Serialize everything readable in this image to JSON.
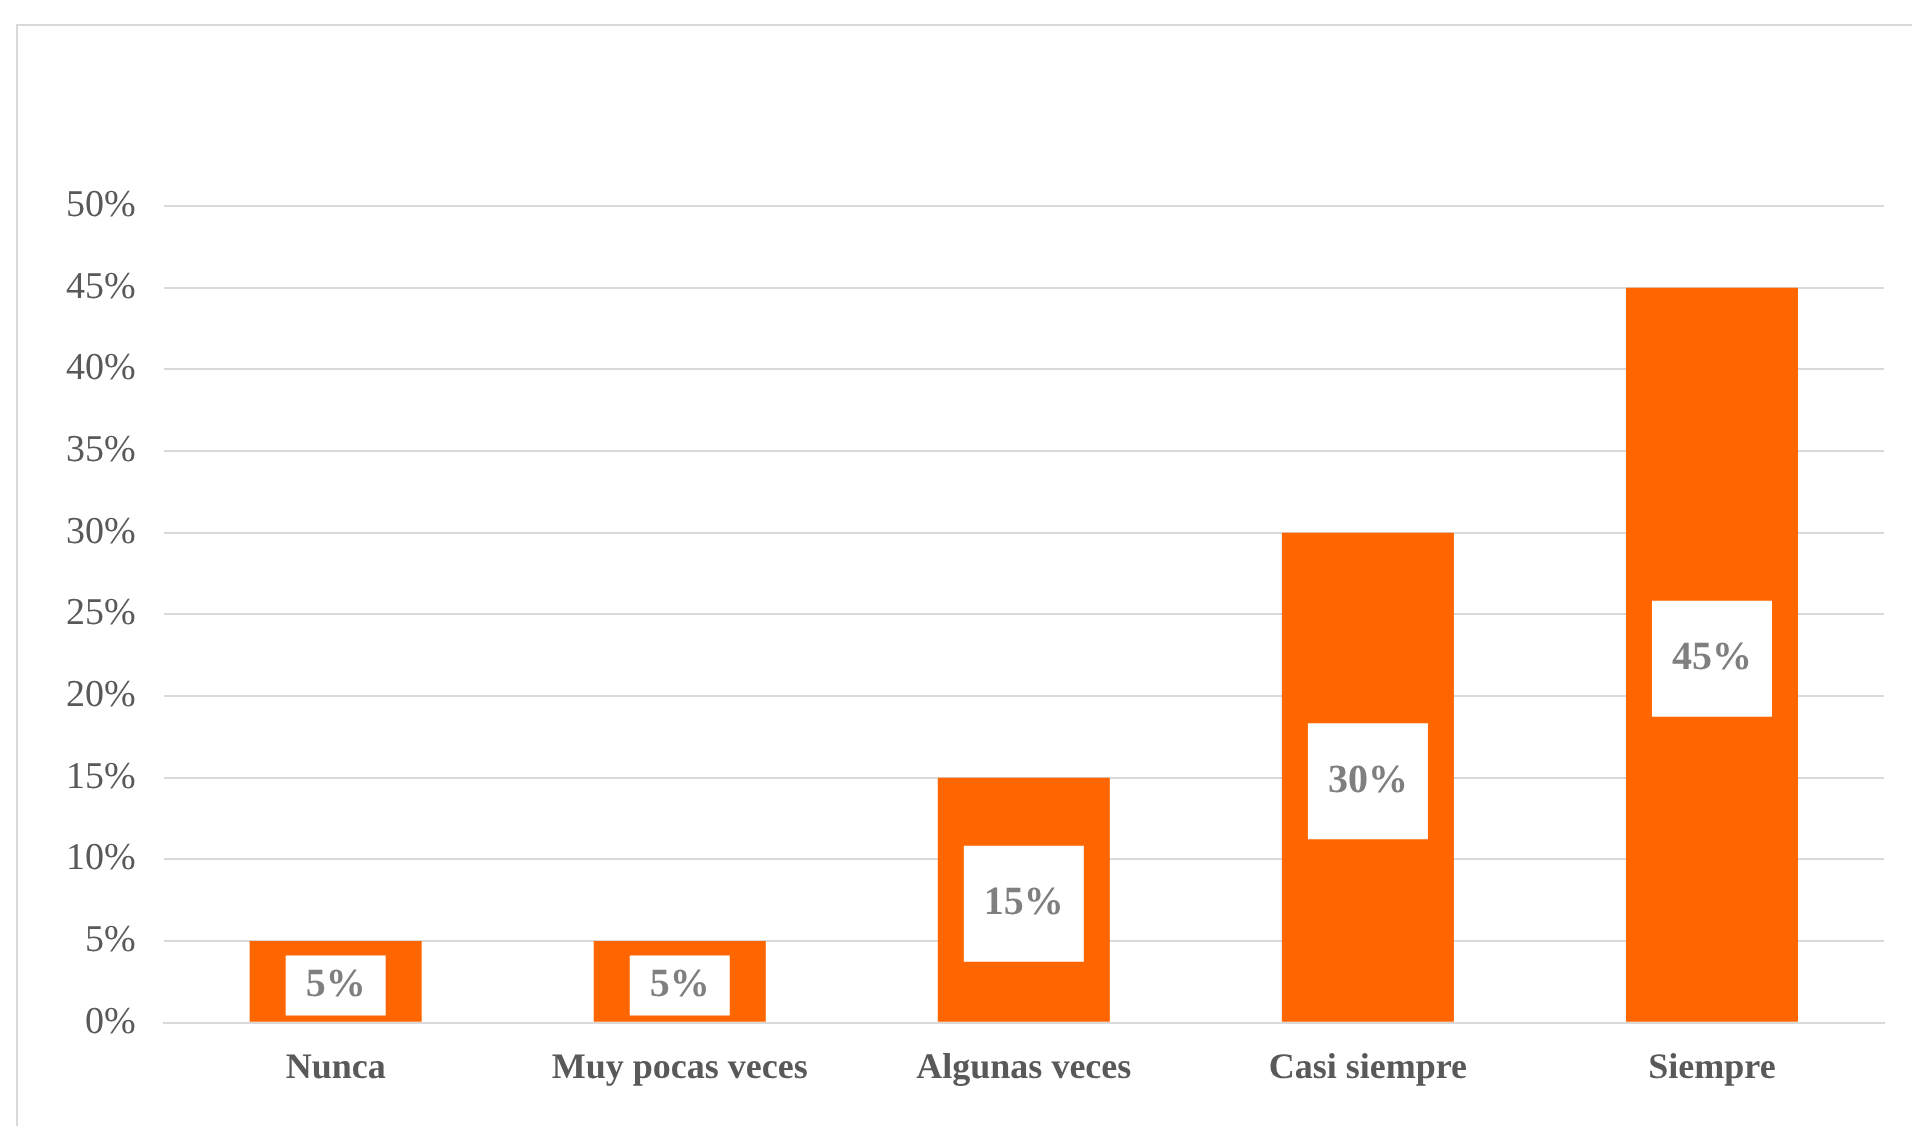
{
  "chart_data": {
    "type": "bar",
    "categories": [
      "Nunca",
      "Muy pocas veces",
      "Algunas veces",
      "Casi siempre",
      "Siempre"
    ],
    "values": [
      5,
      5,
      15,
      30,
      45
    ],
    "value_labels": [
      "5%",
      "5%",
      "15%",
      "30%",
      "45%"
    ],
    "color": "#ff6600",
    "ylim": [
      0,
      50
    ],
    "yticks": [
      {
        "value": 0,
        "label": "0%"
      },
      {
        "value": 5,
        "label": "5%"
      },
      {
        "value": 10,
        "label": "10%"
      },
      {
        "value": 15,
        "label": "15%"
      },
      {
        "value": 20,
        "label": "20%"
      },
      {
        "value": 25,
        "label": "25%"
      },
      {
        "value": 30,
        "label": "30%"
      },
      {
        "value": 35,
        "label": "35%"
      },
      {
        "value": 40,
        "label": "40%"
      },
      {
        "value": 45,
        "label": "45%"
      },
      {
        "value": 50,
        "label": "50%"
      }
    ],
    "grid": "y",
    "legend": false
  }
}
